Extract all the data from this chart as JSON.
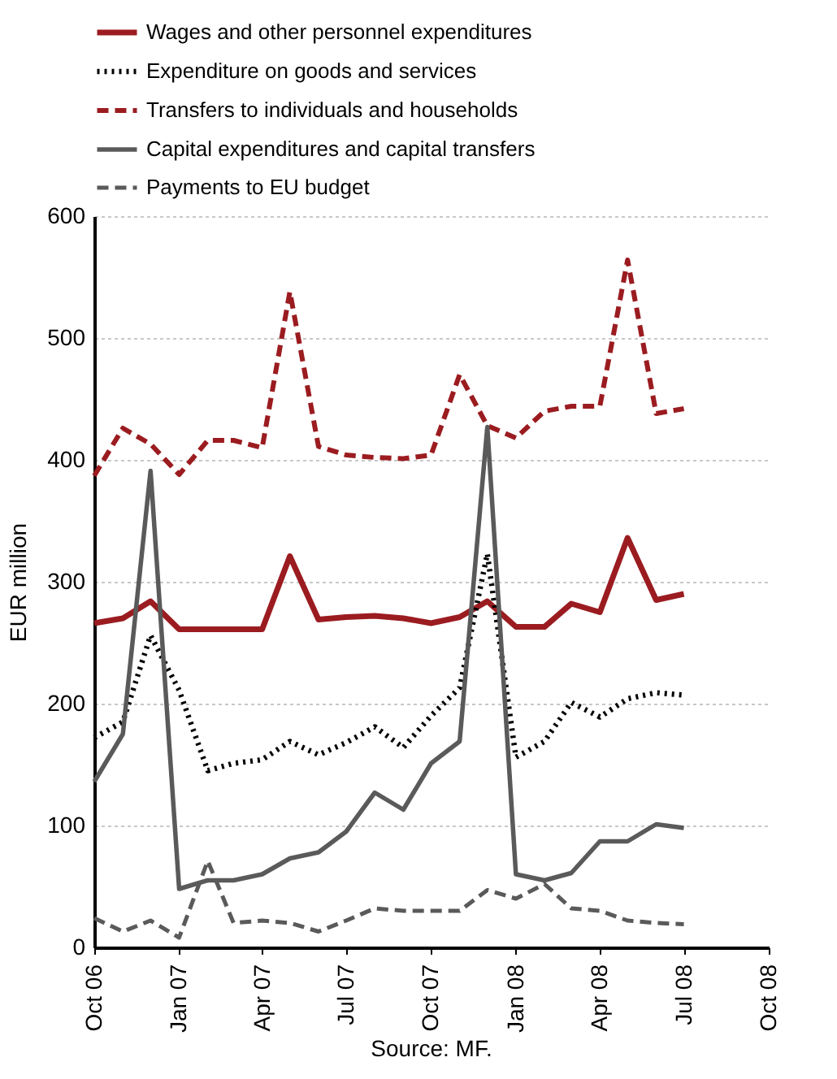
{
  "chart_data": {
    "type": "line",
    "ylabel": "EUR million",
    "annotations": [
      "Source: MF."
    ],
    "x": [
      "2006-10",
      "2006-11",
      "2006-12",
      "2007-01",
      "2007-02",
      "2007-03",
      "2007-04",
      "2007-05",
      "2007-06",
      "2007-07",
      "2007-08",
      "2007-09",
      "2007-10",
      "2007-11",
      "2007-12",
      "2008-01",
      "2008-02",
      "2008-03",
      "2008-04",
      "2008-05",
      "2008-06",
      "2008-07"
    ],
    "xlim": [
      "2006-10",
      "2008-10"
    ],
    "xticks": [
      {
        "value": "2006-10",
        "label": "Oct 06"
      },
      {
        "value": "2007-01",
        "label": "Jan 07"
      },
      {
        "value": "2007-04",
        "label": "Apr 07"
      },
      {
        "value": "2007-07",
        "label": "Jul 07"
      },
      {
        "value": "2007-10",
        "label": "Oct 07"
      },
      {
        "value": "2008-01",
        "label": "Jan 08"
      },
      {
        "value": "2008-04",
        "label": "Apr 08"
      },
      {
        "value": "2008-07",
        "label": "Jul 08"
      },
      {
        "value": "2008-10",
        "label": "Oct 08"
      }
    ],
    "ylim": [
      0,
      600
    ],
    "yticks": [
      0,
      100,
      200,
      300,
      400,
      500,
      600
    ],
    "grid": "y",
    "legend": "top",
    "marker": "none",
    "series": [
      {
        "name": "Wages and other personnel expenditures",
        "color": "#9b1c20",
        "line_style": "solid",
        "values": [
          266,
          270,
          284,
          261,
          261,
          261,
          261,
          321,
          269,
          271,
          272,
          270,
          266,
          271,
          284,
          263,
          263,
          282,
          275,
          336,
          285,
          290
        ]
      },
      {
        "name": "Expenditure on goods and services",
        "color": "#000000",
        "line_style": "dotted",
        "values": [
          172,
          185,
          256,
          211,
          145,
          151,
          154,
          169,
          158,
          168,
          181,
          164,
          190,
          213,
          323,
          156,
          169,
          201,
          189,
          204,
          209,
          207
        ]
      },
      {
        "name": "Transfers to individuals and households",
        "color": "#9b1c20",
        "line_style": "dashed",
        "values": [
          387,
          426,
          413,
          388,
          416,
          416,
          410,
          538,
          411,
          404,
          402,
          401,
          404,
          470,
          428,
          418,
          440,
          444,
          444,
          564,
          438,
          442
        ]
      },
      {
        "name": "Capital expenditures and capital transfers",
        "color": "#5a5a5a",
        "line_style": "solid",
        "values": [
          136,
          175,
          391,
          48,
          55,
          55,
          60,
          73,
          78,
          95,
          127,
          113,
          151,
          169,
          427,
          60,
          55,
          61,
          87,
          87,
          101,
          98
        ]
      },
      {
        "name": "Payments to EU budget",
        "color": "#5a5a5a",
        "line_style": "dashed",
        "values": [
          24,
          13,
          22,
          8,
          71,
          20,
          22,
          20,
          13,
          22,
          32,
          30,
          30,
          30,
          47,
          40,
          52,
          32,
          30,
          22,
          20,
          19
        ]
      }
    ]
  }
}
